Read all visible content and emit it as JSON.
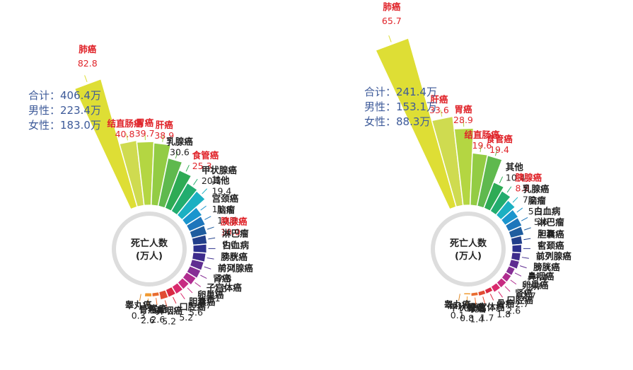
{
  "chart_data": [
    {
      "type": "polar-bar",
      "center_label_lines": [
        "死亡人数",
        "(万人)"
      ],
      "summary": [
        "合计：406.4万",
        "男性：223.4万",
        "女性：183.0万"
      ],
      "categories": [
        "肺癌",
        "结直肠癌",
        "胃癌",
        "肝癌",
        "乳腺癌",
        "食管癌",
        "甲状腺癌",
        "其他",
        "宫颈癌",
        "脑瘤",
        "胰腺癌",
        "淋巴瘤",
        "白血病",
        "膀胱癌",
        "前列腺癌",
        "肾癌",
        "子宫体癌",
        "卵巢癌",
        "胆囊癌",
        "口腔癌",
        "鼻咽癌",
        "喉癌",
        "骨癌",
        "睾丸癌"
      ],
      "values": [
        82.8,
        40.8,
        39.7,
        38.9,
        30.6,
        25.3,
        20.3,
        19.4,
        11.9,
        10.9,
        10.0,
        9.0,
        8.6,
        8.2,
        7.8,
        7.6,
        7.1,
        5.7,
        5.6,
        5.2,
        5.2,
        2.6,
        2.6,
        0.3
      ],
      "highlighted": [
        "肺癌",
        "结直肠癌",
        "胃癌",
        "肝癌",
        "食管癌",
        "胰腺癌"
      ]
    },
    {
      "type": "polar-bar",
      "center_label_lines": [
        "死亡人数",
        "(万人)"
      ],
      "summary": [
        "合计：241.4万",
        "男性：153.1万",
        "女性：88.3万"
      ],
      "categories": [
        "肺癌",
        "肝癌",
        "胃癌",
        "结直肠癌",
        "食管癌",
        "其他",
        "胰腺癌",
        "乳腺癌",
        "脑瘤",
        "白血病",
        "淋巴瘤",
        "胆囊癌",
        "宫颈癌",
        "前列腺癌",
        "膀胱癌",
        "鼻咽癌",
        "卵巢癌",
        "肾癌",
        "口腔癌",
        "骨癌",
        "子宫体癌",
        "喉癌",
        "甲状腺癌",
        "睾丸癌"
      ],
      "values": [
        65.7,
        33.6,
        28.9,
        19.6,
        19.4,
        10.4,
        8.8,
        7.2,
        5.9,
        5.6,
        5.2,
        4.1,
        3.7,
        3.4,
        3.4,
        2.7,
        2.7,
        2.7,
        2.6,
        1.8,
        1.7,
        1.4,
        0.8,
        0.1
      ],
      "highlighted": [
        "肺癌",
        "肝癌",
        "胃癌",
        "结直肠癌",
        "食管癌",
        "胰腺癌"
      ]
    }
  ],
  "colors": {
    "palette": [
      "#dede35",
      "#cfdb50",
      "#b4d642",
      "#93cc44",
      "#5fb94e",
      "#2eab55",
      "#22ad6f",
      "#1cb0c2",
      "#1a95ce",
      "#1e76bb",
      "#1f5d9f",
      "#213f8a",
      "#2c318d",
      "#3e2c8c",
      "#5f2d91",
      "#862f95",
      "#b02c8f",
      "#c72c82",
      "#d92a6d",
      "#d92a43",
      "#e14b32",
      "#e96c30",
      "#f09a30",
      "#e08a2a"
    ],
    "highlight_text": "#e0242a",
    "normal_text": "#222222",
    "summary_text": "#3d5a99"
  }
}
